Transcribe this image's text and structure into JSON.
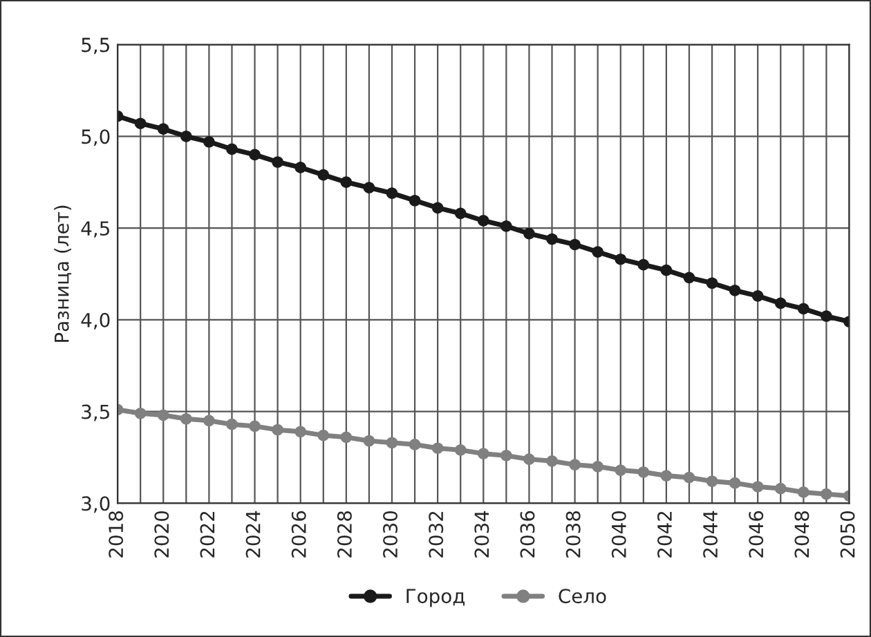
{
  "chart_data": {
    "type": "line",
    "ylabel": "Разница (лет)",
    "x": [
      2018,
      2019,
      2020,
      2021,
      2022,
      2023,
      2024,
      2025,
      2026,
      2027,
      2028,
      2029,
      2030,
      2031,
      2032,
      2033,
      2034,
      2035,
      2036,
      2037,
      2038,
      2039,
      2040,
      2041,
      2042,
      2043,
      2044,
      2045,
      2046,
      2047,
      2048,
      2049,
      2050
    ],
    "series": [
      {
        "name": "Город",
        "color": "#1a1a1a",
        "values": [
          5.11,
          5.07,
          5.04,
          5.0,
          4.97,
          4.93,
          4.9,
          4.86,
          4.83,
          4.79,
          4.75,
          4.72,
          4.69,
          4.65,
          4.61,
          4.58,
          4.54,
          4.51,
          4.47,
          4.44,
          4.41,
          4.37,
          4.33,
          4.3,
          4.27,
          4.23,
          4.2,
          4.16,
          4.13,
          4.09,
          4.06,
          4.02,
          3.99
        ]
      },
      {
        "name": "Село",
        "color": "#808080",
        "values": [
          3.51,
          3.49,
          3.48,
          3.46,
          3.45,
          3.43,
          3.42,
          3.4,
          3.39,
          3.37,
          3.36,
          3.34,
          3.33,
          3.32,
          3.3,
          3.29,
          3.27,
          3.26,
          3.24,
          3.23,
          3.21,
          3.2,
          3.18,
          3.17,
          3.15,
          3.14,
          3.12,
          3.11,
          3.09,
          3.08,
          3.06,
          3.05,
          3.04
        ]
      }
    ],
    "xlim": [
      2018,
      2050
    ],
    "xticks": [
      2018,
      {
        "value": 2019,
        "label": null
      },
      2020,
      {
        "value": 2021,
        "label": null
      },
      2022,
      {
        "value": 2023,
        "label": null
      },
      2024,
      {
        "value": 2025,
        "label": null
      },
      2026,
      {
        "value": 2027,
        "label": null
      },
      2028,
      {
        "value": 2029,
        "label": null
      },
      2030,
      {
        "value": 2031,
        "label": null
      },
      2032,
      {
        "value": 2033,
        "label": null
      },
      2034,
      {
        "value": 2035,
        "label": null
      },
      2036,
      {
        "value": 2037,
        "label": null
      },
      2038,
      {
        "value": 2039,
        "label": null
      },
      2040,
      {
        "value": 2041,
        "label": null
      },
      2042,
      {
        "value": 2043,
        "label": null
      },
      2044,
      {
        "value": 2045,
        "label": null
      },
      2046,
      {
        "value": 2047,
        "label": null
      },
      2048,
      {
        "value": 2049,
        "label": null
      },
      2050
    ],
    "ylim": [
      3.0,
      5.5
    ],
    "yticks": [
      {
        "value": 3.0,
        "label": "3,0"
      },
      {
        "value": 3.5,
        "label": "3,5"
      },
      {
        "value": 4.0,
        "label": "4,0"
      },
      {
        "value": 4.5,
        "label": "4,5"
      },
      {
        "value": 5.0,
        "label": "5,0"
      },
      {
        "value": 5.5,
        "label": "5,5"
      }
    ],
    "grid": true,
    "legend": "bottom",
    "marker": "circle",
    "line_style": "solid"
  }
}
